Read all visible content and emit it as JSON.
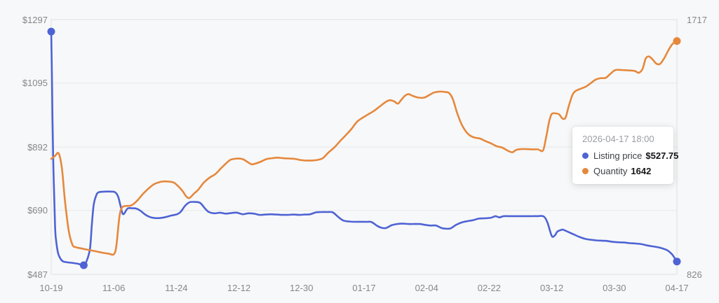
{
  "page": {
    "background": "#f7f8f9"
  },
  "tooltip": {
    "title": "2026-04-17 18:00",
    "items": [
      {
        "label": "Listing price",
        "value": "$527.75",
        "color": "#4e63d4"
      },
      {
        "label": "Quantity",
        "value": "1642",
        "color": "#e5883c"
      }
    ]
  },
  "colors": {
    "background": "#f7f8f9",
    "grid_line": "#e8e9eb",
    "plot_border": "#e0e1e4",
    "axis_text": "#85878b",
    "listing_price_line": "#4e63d4",
    "quantity_line": "#e5883c",
    "tooltip_background": "#ffffff"
  },
  "chart_data": {
    "type": "line",
    "title": "",
    "grid": "horizontal",
    "legend_position": "tooltip-only",
    "x_tick_labels": [
      "10-19",
      "11-06",
      "11-24",
      "12-12",
      "12-30",
      "01-17",
      "02-04",
      "02-22",
      "03-12",
      "03-30",
      "04-17"
    ],
    "left_axis": {
      "tick_labels": [
        "$1297",
        "$1095",
        "$892",
        "$690",
        "$487"
      ],
      "tick_values": [
        1297,
        1095,
        892,
        690,
        487
      ],
      "min": 487,
      "max": 1297
    },
    "right_axis": {
      "tick_labels": [
        "1717",
        "826"
      ],
      "tick_values": [
        1717,
        826
      ],
      "min": 826,
      "max": 1717
    },
    "series": [
      {
        "name": "Listing price",
        "axis": "left",
        "color": "#4e63d4",
        "current_value": "$527.75",
        "points": [
          [
            0,
            1259
          ],
          [
            0.001,
            1137
          ],
          [
            0.003,
            870
          ],
          [
            0.006,
            647
          ],
          [
            0.008,
            592
          ],
          [
            0.011,
            554
          ],
          [
            0.015,
            536
          ],
          [
            0.019,
            528
          ],
          [
            0.026,
            525
          ],
          [
            0.035,
            523
          ],
          [
            0.044,
            520
          ],
          [
            0.052,
            516
          ],
          [
            0.057,
            531
          ],
          [
            0.062,
            569
          ],
          [
            0.065,
            647
          ],
          [
            0.068,
            710
          ],
          [
            0.072,
            738
          ],
          [
            0.076,
            748
          ],
          [
            0.086,
            750
          ],
          [
            0.095,
            750
          ],
          [
            0.102,
            748
          ],
          [
            0.107,
            734
          ],
          [
            0.111,
            703
          ],
          [
            0.115,
            678
          ],
          [
            0.122,
            696
          ],
          [
            0.129,
            697
          ],
          [
            0.136,
            696
          ],
          [
            0.142,
            690
          ],
          [
            0.151,
            676
          ],
          [
            0.158,
            669
          ],
          [
            0.165,
            666
          ],
          [
            0.174,
            666
          ],
          [
            0.183,
            669
          ],
          [
            0.192,
            674
          ],
          [
            0.201,
            678
          ],
          [
            0.207,
            686
          ],
          [
            0.214,
            705
          ],
          [
            0.221,
            716
          ],
          [
            0.23,
            717
          ],
          [
            0.238,
            714
          ],
          [
            0.246,
            696
          ],
          [
            0.252,
            685
          ],
          [
            0.261,
            681
          ],
          [
            0.27,
            683
          ],
          [
            0.279,
            680
          ],
          [
            0.288,
            682
          ],
          [
            0.297,
            683
          ],
          [
            0.306,
            678
          ],
          [
            0.315,
            681
          ],
          [
            0.324,
            680
          ],
          [
            0.333,
            676
          ],
          [
            0.342,
            677
          ],
          [
            0.351,
            678
          ],
          [
            0.36,
            677
          ],
          [
            0.369,
            676
          ],
          [
            0.378,
            676
          ],
          [
            0.387,
            677
          ],
          [
            0.396,
            676
          ],
          [
            0.405,
            677
          ],
          [
            0.414,
            678
          ],
          [
            0.423,
            684
          ],
          [
            0.432,
            685
          ],
          [
            0.441,
            685
          ],
          [
            0.45,
            684
          ],
          [
            0.459,
            669
          ],
          [
            0.467,
            658
          ],
          [
            0.476,
            655
          ],
          [
            0.485,
            654
          ],
          [
            0.503,
            654
          ],
          [
            0.512,
            653
          ],
          [
            0.521,
            641
          ],
          [
            0.528,
            635
          ],
          [
            0.535,
            634
          ],
          [
            0.544,
            643
          ],
          [
            0.553,
            647
          ],
          [
            0.562,
            648
          ],
          [
            0.571,
            647
          ],
          [
            0.58,
            647
          ],
          [
            0.589,
            647
          ],
          [
            0.598,
            644
          ],
          [
            0.606,
            642
          ],
          [
            0.615,
            642
          ],
          [
            0.624,
            634
          ],
          [
            0.631,
            632
          ],
          [
            0.638,
            633
          ],
          [
            0.647,
            644
          ],
          [
            0.656,
            652
          ],
          [
            0.665,
            656
          ],
          [
            0.674,
            659
          ],
          [
            0.683,
            664
          ],
          [
            0.692,
            665
          ],
          [
            0.703,
            667
          ],
          [
            0.71,
            672
          ],
          [
            0.716,
            668
          ],
          [
            0.723,
            672
          ],
          [
            0.732,
            672
          ],
          [
            0.743,
            672
          ],
          [
            0.754,
            672
          ],
          [
            0.766,
            672
          ],
          [
            0.777,
            672
          ],
          [
            0.787,
            671
          ],
          [
            0.793,
            652
          ],
          [
            0.8,
            609
          ],
          [
            0.805,
            611
          ],
          [
            0.809,
            623
          ],
          [
            0.815,
            628
          ],
          [
            0.818,
            629
          ],
          [
            0.826,
            622
          ],
          [
            0.835,
            614
          ],
          [
            0.844,
            606
          ],
          [
            0.853,
            600
          ],
          [
            0.862,
            597
          ],
          [
            0.871,
            595
          ],
          [
            0.88,
            594
          ],
          [
            0.889,
            593
          ],
          [
            0.898,
            590
          ],
          [
            0.907,
            589
          ],
          [
            0.916,
            588
          ],
          [
            0.925,
            586
          ],
          [
            0.934,
            585
          ],
          [
            0.943,
            583
          ],
          [
            0.952,
            579
          ],
          [
            0.961,
            576
          ],
          [
            0.97,
            573
          ],
          [
            0.979,
            568
          ],
          [
            0.985,
            563
          ],
          [
            0.992,
            551
          ],
          [
            0.997,
            537
          ],
          [
            1,
            527.75
          ]
        ],
        "markers": [
          [
            0,
            1259
          ],
          [
            0.052,
            516
          ],
          [
            1,
            527.75
          ]
        ]
      },
      {
        "name": "Quantity",
        "axis": "right",
        "color": "#e5883c",
        "current_value": "1642",
        "points": [
          [
            0,
            1230
          ],
          [
            0.006,
            1240
          ],
          [
            0.012,
            1249
          ],
          [
            0.017,
            1198
          ],
          [
            0.022,
            1083
          ],
          [
            0.028,
            978
          ],
          [
            0.034,
            929
          ],
          [
            0.039,
            921
          ],
          [
            0.047,
            917
          ],
          [
            0.058,
            912
          ],
          [
            0.07,
            907
          ],
          [
            0.081,
            902
          ],
          [
            0.092,
            898
          ],
          [
            0.1,
            896
          ],
          [
            0.104,
            924
          ],
          [
            0.109,
            1027
          ],
          [
            0.113,
            1059
          ],
          [
            0.119,
            1065
          ],
          [
            0.126,
            1066
          ],
          [
            0.131,
            1071
          ],
          [
            0.138,
            1085
          ],
          [
            0.147,
            1108
          ],
          [
            0.156,
            1127
          ],
          [
            0.165,
            1142
          ],
          [
            0.174,
            1149
          ],
          [
            0.182,
            1151
          ],
          [
            0.189,
            1150
          ],
          [
            0.196,
            1147
          ],
          [
            0.203,
            1134
          ],
          [
            0.21,
            1117
          ],
          [
            0.216,
            1098
          ],
          [
            0.221,
            1093
          ],
          [
            0.228,
            1108
          ],
          [
            0.235,
            1122
          ],
          [
            0.244,
            1147
          ],
          [
            0.253,
            1164
          ],
          [
            0.262,
            1176
          ],
          [
            0.271,
            1196
          ],
          [
            0.279,
            1213
          ],
          [
            0.286,
            1226
          ],
          [
            0.293,
            1230
          ],
          [
            0.299,
            1231
          ],
          [
            0.306,
            1229
          ],
          [
            0.313,
            1220
          ],
          [
            0.32,
            1211
          ],
          [
            0.326,
            1213
          ],
          [
            0.335,
            1220
          ],
          [
            0.344,
            1229
          ],
          [
            0.353,
            1232
          ],
          [
            0.362,
            1234
          ],
          [
            0.371,
            1232
          ],
          [
            0.38,
            1231
          ],
          [
            0.389,
            1230
          ],
          [
            0.398,
            1226
          ],
          [
            0.407,
            1224
          ],
          [
            0.416,
            1224
          ],
          [
            0.425,
            1226
          ],
          [
            0.434,
            1232
          ],
          [
            0.443,
            1252
          ],
          [
            0.453,
            1271
          ],
          [
            0.462,
            1293
          ],
          [
            0.471,
            1313
          ],
          [
            0.48,
            1335
          ],
          [
            0.489,
            1360
          ],
          [
            0.498,
            1374
          ],
          [
            0.507,
            1386
          ],
          [
            0.516,
            1398
          ],
          [
            0.525,
            1413
          ],
          [
            0.534,
            1428
          ],
          [
            0.541,
            1435
          ],
          [
            0.548,
            1431
          ],
          [
            0.554,
            1423
          ],
          [
            0.559,
            1435
          ],
          [
            0.565,
            1450
          ],
          [
            0.571,
            1456
          ],
          [
            0.578,
            1450
          ],
          [
            0.587,
            1444
          ],
          [
            0.596,
            1444
          ],
          [
            0.604,
            1453
          ],
          [
            0.612,
            1462
          ],
          [
            0.62,
            1465
          ],
          [
            0.629,
            1464
          ],
          [
            0.636,
            1460
          ],
          [
            0.642,
            1438
          ],
          [
            0.649,
            1389
          ],
          [
            0.656,
            1350
          ],
          [
            0.663,
            1325
          ],
          [
            0.669,
            1312
          ],
          [
            0.677,
            1304
          ],
          [
            0.685,
            1301
          ],
          [
            0.694,
            1292
          ],
          [
            0.703,
            1284
          ],
          [
            0.712,
            1274
          ],
          [
            0.721,
            1269
          ],
          [
            0.73,
            1258
          ],
          [
            0.737,
            1253
          ],
          [
            0.743,
            1261
          ],
          [
            0.751,
            1264
          ],
          [
            0.76,
            1264
          ],
          [
            0.769,
            1263
          ],
          [
            0.778,
            1263
          ],
          [
            0.786,
            1259
          ],
          [
            0.791,
            1306
          ],
          [
            0.796,
            1362
          ],
          [
            0.8,
            1387
          ],
          [
            0.806,
            1389
          ],
          [
            0.812,
            1385
          ],
          [
            0.817,
            1371
          ],
          [
            0.822,
            1374
          ],
          [
            0.827,
            1413
          ],
          [
            0.833,
            1453
          ],
          [
            0.838,
            1467
          ],
          [
            0.846,
            1475
          ],
          [
            0.854,
            1482
          ],
          [
            0.862,
            1494
          ],
          [
            0.87,
            1507
          ],
          [
            0.878,
            1512
          ],
          [
            0.886,
            1513
          ],
          [
            0.893,
            1526
          ],
          [
            0.901,
            1540
          ],
          [
            0.909,
            1541
          ],
          [
            0.917,
            1540
          ],
          [
            0.925,
            1539
          ],
          [
            0.933,
            1537
          ],
          [
            0.939,
            1531
          ],
          [
            0.945,
            1544
          ],
          [
            0.95,
            1580
          ],
          [
            0.955,
            1588
          ],
          [
            0.961,
            1578
          ],
          [
            0.967,
            1563
          ],
          [
            0.973,
            1562
          ],
          [
            0.98,
            1583
          ],
          [
            0.987,
            1612
          ],
          [
            0.993,
            1632
          ],
          [
            1,
            1642
          ]
        ],
        "markers": [
          [
            1,
            1642
          ]
        ]
      }
    ]
  }
}
